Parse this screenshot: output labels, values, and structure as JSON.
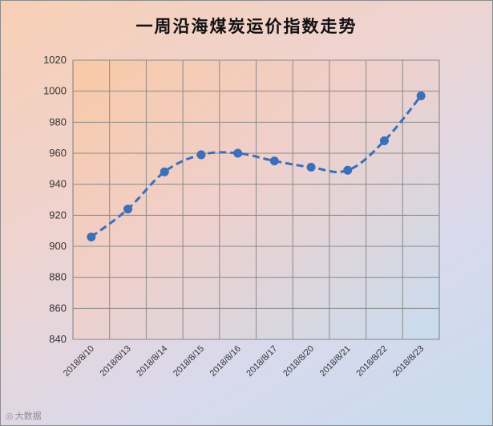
{
  "chart_data": {
    "type": "line",
    "title": "一周沿海煤炭运价指数走势",
    "categories": [
      "2018/8/10",
      "2018/8/13",
      "2018/8/14",
      "2018/8/15",
      "2018/8/16",
      "2018/8/17",
      "2018/8/20",
      "2018/8/21",
      "2018/8/22",
      "2018/8/23"
    ],
    "series": [
      {
        "values": [
          906,
          924,
          948,
          959,
          960,
          955,
          951,
          949,
          968,
          997
        ]
      }
    ],
    "ylim": [
      840,
      1020
    ],
    "yticks": [
      840,
      860,
      880,
      900,
      920,
      940,
      960,
      980,
      1000,
      1020
    ],
    "xlabel": "",
    "ylabel": "",
    "grid": true,
    "line_style": "dashed",
    "series_color": "#3a6fba"
  },
  "watermark": {
    "icon": "camera-icon",
    "text": "大数据"
  }
}
